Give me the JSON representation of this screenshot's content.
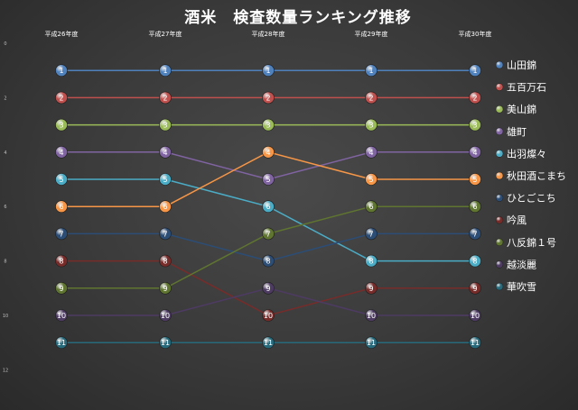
{
  "chart_data": {
    "type": "line",
    "title": "酒米　検査数量ランキング推移",
    "categories": [
      "平成26年度",
      "平成27年度",
      "平成28年度",
      "平成29年度",
      "平成30年度"
    ],
    "ylim": [
      12,
      0
    ],
    "yticks": [
      "0",
      "2",
      "4",
      "6",
      "8",
      "10",
      "12"
    ],
    "y_reversed": true,
    "grid": false,
    "legend": "right",
    "series": [
      {
        "name": "山田錦",
        "color": "#4f81bd",
        "values": [
          1,
          1,
          1,
          1,
          1
        ]
      },
      {
        "name": "五百万石",
        "color": "#c0504d",
        "values": [
          2,
          2,
          2,
          2,
          2
        ]
      },
      {
        "name": "美山錦",
        "color": "#9bbb59",
        "values": [
          3,
          3,
          3,
          3,
          3
        ]
      },
      {
        "name": "雄町",
        "color": "#8064a2",
        "values": [
          4,
          4,
          5,
          4,
          4
        ]
      },
      {
        "name": "出羽燦々",
        "color": "#4bacc6",
        "values": [
          5,
          5,
          6,
          8,
          8
        ]
      },
      {
        "name": "秋田酒こまち",
        "color": "#f79646",
        "values": [
          6,
          6,
          4,
          5,
          5
        ]
      },
      {
        "name": "ひとごこち",
        "color": "#2c4d75",
        "values": [
          7,
          7,
          8,
          7,
          7
        ]
      },
      {
        "name": "吟風",
        "color": "#772c2a",
        "values": [
          8,
          8,
          10,
          9,
          9
        ]
      },
      {
        "name": "八反錦１号",
        "color": "#5f7530",
        "values": [
          9,
          9,
          7,
          6,
          6
        ]
      },
      {
        "name": "越淡麗",
        "color": "#4d3b62",
        "values": [
          10,
          10,
          9,
          10,
          10
        ]
      },
      {
        "name": "華吹雪",
        "color": "#276a7c",
        "values": [
          11,
          11,
          11,
          11,
          11
        ]
      }
    ]
  }
}
